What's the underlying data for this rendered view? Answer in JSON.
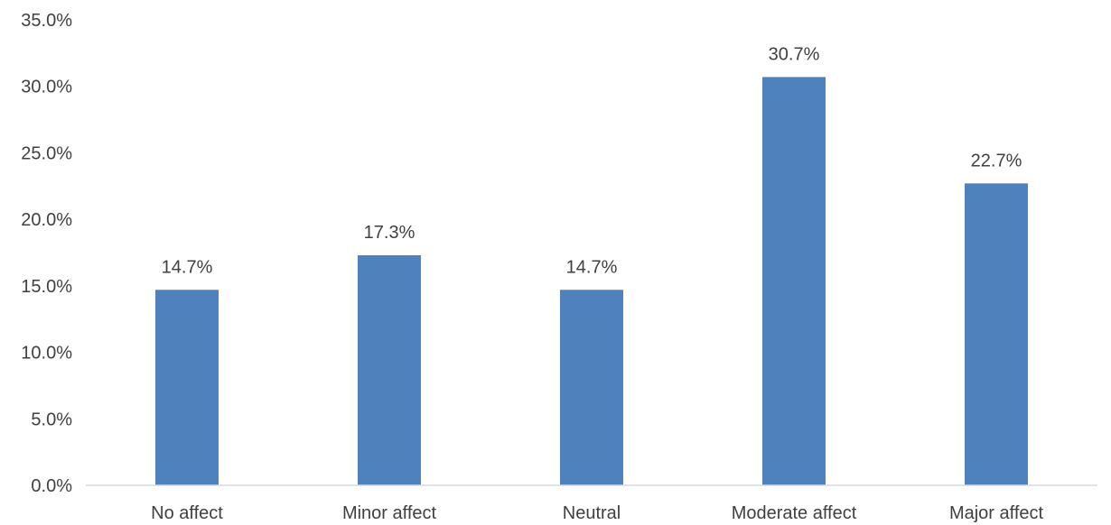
{
  "chart_data": {
    "type": "bar",
    "title": "",
    "xlabel": "",
    "ylabel": "",
    "categories": [
      "No affect",
      "Minor affect",
      "Neutral",
      "Moderate affect",
      "Major affect"
    ],
    "values": [
      14.7,
      17.3,
      14.7,
      30.7,
      22.7
    ],
    "data_labels": [
      "14.7%",
      "17.3%",
      "14.7%",
      "30.7%",
      "22.7%"
    ],
    "ylim": [
      0,
      35
    ],
    "y_ticks": [
      0,
      5,
      10,
      15,
      20,
      25,
      30,
      35
    ],
    "y_tick_labels": [
      "0.0%",
      "5.0%",
      "10.0%",
      "15.0%",
      "20.0%",
      "25.0%",
      "30.0%",
      "35.0%"
    ],
    "grid": false,
    "legend": "none",
    "bar_color": "#4f81bd",
    "text_color": "#404040",
    "axis_color": "#d9d9d9"
  }
}
